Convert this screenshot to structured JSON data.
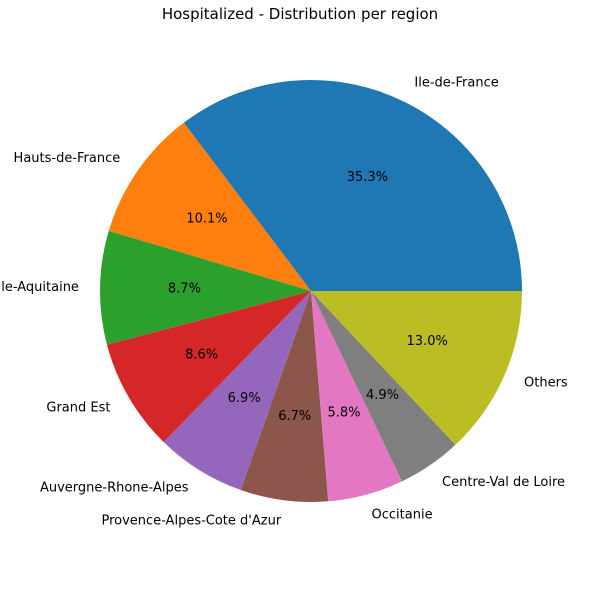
{
  "chart_data": {
    "type": "pie",
    "title": "Hospitalized - Distribution per region",
    "categories": [
      "Ile-de-France",
      "Hauts-de-France",
      "Nouvelle-Aquitaine",
      "Grand Est",
      "Auvergne-Rhone-Alpes",
      "Provence-Alpes-Cote d'Azur",
      "Occitanie",
      "Centre-Val de Loire",
      "Others"
    ],
    "values": [
      35.3,
      10.1,
      8.7,
      8.6,
      6.9,
      6.7,
      5.8,
      4.9,
      13.0
    ],
    "value_labels": [
      "35.3%",
      "10.1%",
      "8.7%",
      "8.6%",
      "6.9%",
      "6.7%",
      "5.8%",
      "4.9%",
      "13.0%"
    ],
    "colors": [
      "#1f77b4",
      "#ff7f0e",
      "#2ca02c",
      "#d62728",
      "#9467bd",
      "#8c564b",
      "#e377c2",
      "#7f7f7f",
      "#bcbd22"
    ],
    "start_angle_deg": 0,
    "direction": "counterclockwise",
    "legend": "none"
  }
}
